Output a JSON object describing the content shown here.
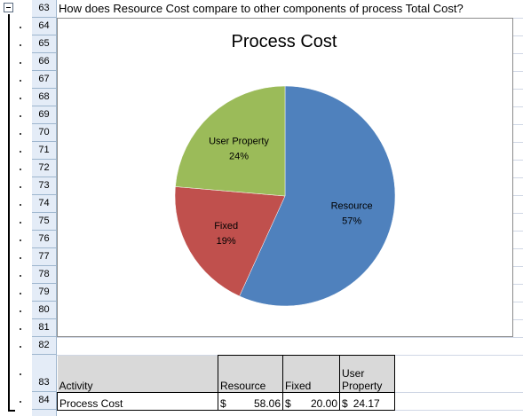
{
  "question": "How does Resource Cost compare to other components of process Total Cost?",
  "rows": [
    "63",
    "64",
    "65",
    "66",
    "67",
    "68",
    "69",
    "70",
    "71",
    "72",
    "73",
    "74",
    "75",
    "76",
    "77",
    "78",
    "79",
    "80",
    "81",
    "82",
    "83",
    "84"
  ],
  "chart_data": {
    "type": "pie",
    "title": "Process Cost",
    "slices": [
      {
        "label": "Resource",
        "percent": "57%",
        "value": 58.06,
        "color": "#4f81bd"
      },
      {
        "label": "Fixed",
        "percent": "19%",
        "value": 20.0,
        "color": "#c0504d"
      },
      {
        "label": "User Property",
        "percent": "24%",
        "value": 24.17,
        "color": "#9bbb59"
      }
    ]
  },
  "table": {
    "headers": {
      "activity": "Activity",
      "resource": "Resource",
      "fixed": "Fixed",
      "user_property": "User Property"
    },
    "row": {
      "activity": "Process Cost",
      "resource_symbol": "$",
      "resource_value": "58.06",
      "fixed_symbol": "$",
      "fixed_value": "20.00",
      "user_property_symbol": "$",
      "user_property_value": "24.17"
    }
  }
}
